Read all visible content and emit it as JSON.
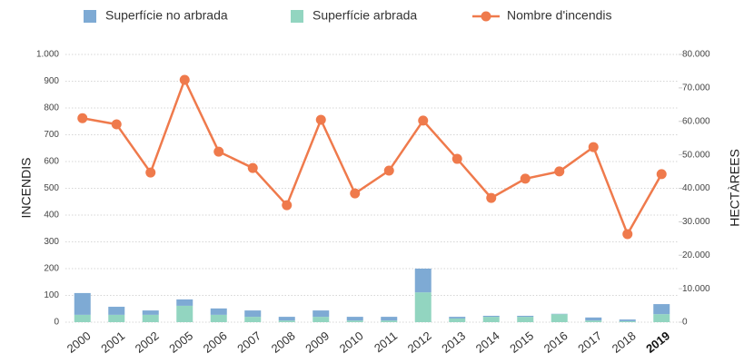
{
  "chart_data": {
    "type": "bar-line",
    "y_label": "INCENDIS",
    "y2_label": "HECTÀREES",
    "categories": [
      "2000",
      "2001",
      "2002",
      "2005",
      "2006",
      "2007",
      "2008",
      "2009",
      "2010",
      "2011",
      "2012",
      "2013",
      "2014",
      "2015",
      "2016",
      "2017",
      "2018",
      "2019"
    ],
    "series": [
      {
        "name": "Superfície no arbrada",
        "type": "bar",
        "axis": "y2",
        "color": "#7eaad4",
        "values": [
          6500,
          2400,
          1300,
          1900,
          1900,
          1900,
          1100,
          1900,
          1100,
          1100,
          7100,
          500,
          300,
          300,
          100,
          900,
          500,
          3000
        ]
      },
      {
        "name": "Superfície arbrada",
        "type": "bar",
        "axis": "y2",
        "color": "#92d5c0",
        "values": [
          2200,
          2200,
          2200,
          4900,
          2200,
          1600,
          500,
          1600,
          500,
          500,
          8900,
          1100,
          1600,
          1600,
          2400,
          500,
          300,
          2400
        ]
      },
      {
        "name": "Nombre d'incendis",
        "type": "line",
        "axis": "y",
        "color": "#ef7a4c",
        "values": [
          762,
          739,
          559,
          905,
          637,
          576,
          437,
          756,
          481,
          566,
          753,
          610,
          464,
          536,
          563,
          654,
          329,
          553
        ]
      }
    ],
    "stack_order": [
      1,
      0
    ],
    "ylim": [
      0,
      1000
    ],
    "yticks": [
      0,
      100,
      200,
      300,
      400,
      500,
      600,
      700,
      800,
      900,
      {
        "value": 1000,
        "label": "1.000"
      }
    ],
    "y2lim": [
      0,
      80000
    ],
    "y2ticks": [
      0,
      {
        "value": 10000,
        "label": "10.000"
      },
      {
        "value": 20000,
        "label": "20.000"
      },
      {
        "value": 30000,
        "label": "30.000"
      },
      {
        "value": 40000,
        "label": "40.000"
      },
      {
        "value": 50000,
        "label": "50.000"
      },
      {
        "value": 60000,
        "label": "60.000"
      },
      {
        "value": 70000,
        "label": "70.000"
      },
      {
        "value": 80000,
        "label": "80.000"
      }
    ],
    "grid": true
  }
}
